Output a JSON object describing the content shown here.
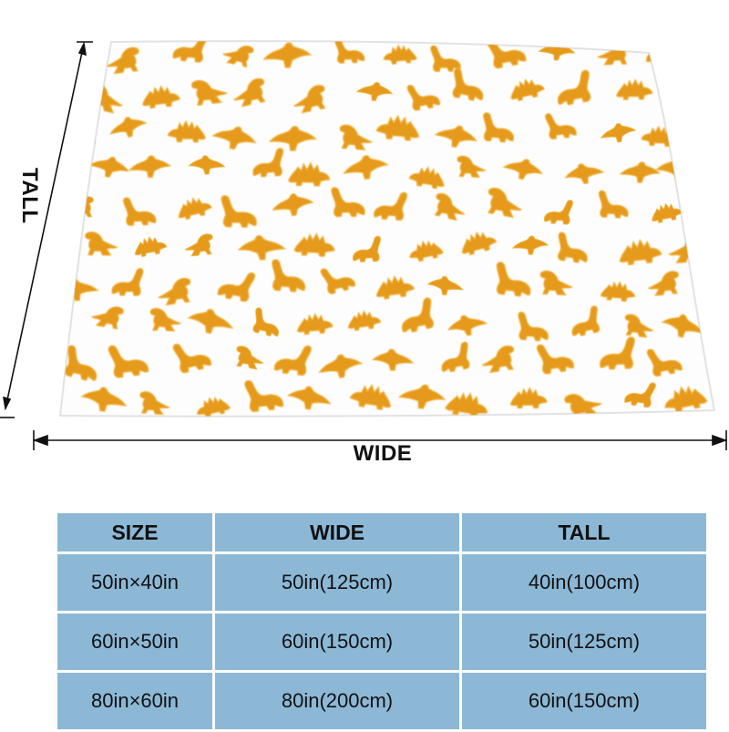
{
  "diagram": {
    "wide_label": "WIDE",
    "tall_label": "TALL"
  },
  "pattern": {
    "nugget_color": "#e59a1e",
    "nugget_highlight": "#f2b33d",
    "background": "#ffffff"
  },
  "table": {
    "header_color": "#8cb8d6",
    "headers": [
      "SIZE",
      "WIDE",
      "TALL"
    ],
    "rows": [
      [
        "50in×40in",
        "50in(125cm)",
        "40in(100cm)"
      ],
      [
        "60in×50in",
        "60in(150cm)",
        "50in(125cm)"
      ],
      [
        "80in×60in",
        "80in(200cm)",
        "60in(150cm)"
      ]
    ]
  }
}
